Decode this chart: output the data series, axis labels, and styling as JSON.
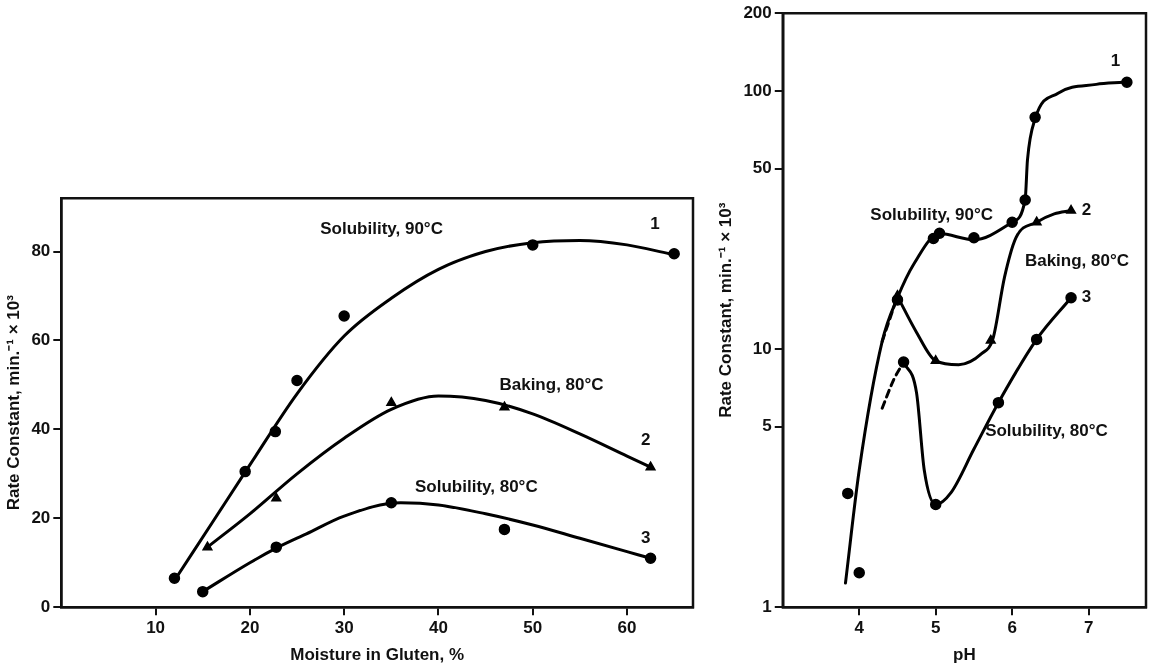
{
  "chart_data": [
    {
      "type": "scatter",
      "xlabel": "Moisture in Gluten, %",
      "ylabel": "Rate Constant, min.⁻¹ × 10³",
      "xlim": [
        0,
        67
      ],
      "ylim": [
        0,
        92
      ],
      "xticks": [
        10,
        20,
        30,
        40,
        50,
        60
      ],
      "yticks": [
        0,
        20,
        40,
        60,
        80
      ],
      "annotations": [
        "Solubility, 90°C",
        "1",
        "Baking, 80°C",
        "2",
        "Solubility, 80°C",
        "3"
      ],
      "series": [
        {
          "type": "line",
          "color": "#000000",
          "marker": "none",
          "x": [
            12,
            16,
            20,
            25,
            30,
            35,
            40,
            45,
            50,
            55,
            60,
            64.5
          ],
          "values": [
            6,
            19,
            32,
            48,
            61,
            69.5,
            76,
            80,
            82,
            82.5,
            81.5,
            79.5
          ]
        },
        {
          "type": "line",
          "color": "#000000",
          "marker": "none",
          "x": [
            15.5,
            20,
            25,
            30,
            35,
            40,
            45,
            50,
            55,
            60,
            62.5
          ],
          "values": [
            13.5,
            21,
            30,
            38,
            44.5,
            47.5,
            46.5,
            43.5,
            39,
            34,
            31.5
          ]
        },
        {
          "type": "line",
          "color": "#000000",
          "marker": "none",
          "x": [
            15,
            20,
            23,
            26,
            30,
            36,
            40,
            45,
            50,
            55,
            60,
            62.5
          ],
          "values": [
            3.5,
            10,
            13.5,
            16.5,
            20.5,
            23.5,
            23,
            21,
            18.5,
            15.5,
            12.5,
            11
          ]
        },
        {
          "color": "#000000",
          "marker": "circle",
          "x": [
            12,
            19.5,
            22.7,
            25,
            30,
            50,
            65
          ],
          "values": [
            6.5,
            30.5,
            39.5,
            51,
            65.5,
            81.5,
            79.5
          ]
        },
        {
          "color": "#000000",
          "marker": "triangle",
          "x": [
            15.5,
            22.8,
            35,
            47,
            62.5
          ],
          "values": [
            13.5,
            24.5,
            46,
            45,
            31.5
          ]
        },
        {
          "color": "#000000",
          "marker": "circle",
          "x": [
            15,
            22.8,
            35,
            47,
            62.5
          ],
          "values": [
            3.5,
            13.5,
            23.5,
            17.5,
            11
          ]
        }
      ]
    },
    {
      "type": "scatter",
      "xlabel": "pH",
      "ylabel": "Rate Constant, min.⁻¹ × 10³",
      "log": "y",
      "xlim": [
        3,
        7.75
      ],
      "ylim": [
        1,
        200
      ],
      "xticks": [
        4,
        5,
        6,
        7
      ],
      "yticks": [
        1,
        5,
        10,
        50,
        100,
        200
      ],
      "annotations": [
        "1",
        "2",
        "3",
        "Solubility, 90°C",
        "Baking, 80°C",
        "Solubility, 80°C"
      ],
      "series": [
        {
          "type": "line",
          "color": "#000000",
          "marker": "none",
          "x": [
            3.82,
            4.0,
            4.3,
            4.5,
            4.72,
            5.05,
            5.5,
            6.0,
            6.17,
            6.2,
            6.3,
            6.6,
            7.1,
            7.45
          ],
          "values": [
            1.24,
            3.4,
            10.7,
            15.8,
            21.5,
            28,
            26.5,
            31,
            38,
            54,
            78,
            98,
            106,
            108
          ]
        },
        {
          "type": "line",
          "color": "#000000",
          "marker": "none",
          "x": [
            4.5,
            4.75,
            5.0,
            5.3,
            5.6,
            5.75,
            5.9,
            6.05,
            6.32,
            6.55,
            6.77
          ],
          "values": [
            16,
            11.6,
            9,
            8.7,
            9.6,
            11,
            19,
            27,
            31,
            33.4,
            34.4
          ]
        },
        {
          "type": "line",
          "color": "#000000",
          "marker": "none",
          "line_style": "dashed",
          "x": [
            4.3,
            4.5
          ],
          "values": [
            10.7,
            16
          ]
        },
        {
          "type": "line",
          "color": "#000000",
          "marker": "none",
          "x": [
            4.58,
            4.75,
            4.85,
            5.0,
            5.2,
            5.5,
            5.82,
            6.32,
            6.77
          ],
          "values": [
            8.9,
            6.75,
            3.4,
            2.5,
            2.78,
            4.1,
            6.2,
            10.9,
            15.8
          ]
        },
        {
          "type": "line",
          "color": "#000000",
          "marker": "none",
          "line_style": "dashed",
          "x": [
            4.3,
            4.45,
            4.58
          ],
          "values": [
            5.9,
            7.6,
            8.9
          ]
        },
        {
          "color": "#000000",
          "marker": "circle",
          "x": [
            3.85,
            4.0,
            4.5,
            4.97,
            5.05,
            5.5,
            6.0,
            6.17,
            6.3,
            7.5
          ],
          "values": [
            2.76,
            1.36,
            15.5,
            26.8,
            28.1,
            27,
            31,
            37.8,
            79,
            108
          ]
        },
        {
          "color": "#000000",
          "marker": "triangle",
          "x": [
            4.5,
            5.0,
            5.72,
            6.32,
            6.77
          ],
          "values": [
            16.1,
            9.0,
            10.8,
            31,
            34.4
          ]
        },
        {
          "color": "#000000",
          "marker": "circle",
          "x": [
            4.58,
            5.0,
            5.82,
            6.32,
            6.77
          ],
          "values": [
            8.9,
            2.5,
            6.2,
            10.9,
            15.8
          ]
        }
      ]
    }
  ]
}
